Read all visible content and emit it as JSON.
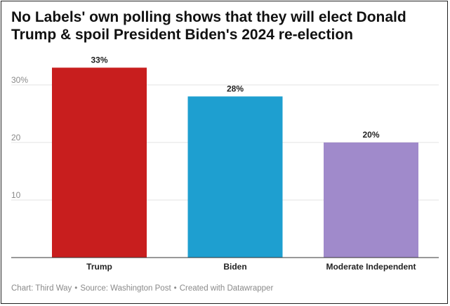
{
  "title": "No Labels' own polling shows that they will elect Donald Trump & spoil President Biden's 2024 re-election",
  "chart_data": {
    "type": "bar",
    "title": "No Labels' own polling shows that they will elect Donald Trump & spoil President Biden's 2024 re-election",
    "categories": [
      "Trump",
      "Biden",
      "Moderate Independent"
    ],
    "values": [
      33,
      28,
      20
    ],
    "value_labels": [
      "33%",
      "28%",
      "20%"
    ],
    "colors": [
      "#c81e1e",
      "#1e9fd0",
      "#a08acb"
    ],
    "ylim": [
      0,
      35
    ],
    "yticks": [
      10,
      20,
      30
    ],
    "ytick_labels": [
      "10",
      "20",
      "30%"
    ],
    "grid": true,
    "legend": "none"
  },
  "footer": {
    "chart_credit": "Chart: Third Way",
    "source": "Source: Washington Post",
    "created_with": "Created with Datawrapper",
    "separator": "•"
  }
}
